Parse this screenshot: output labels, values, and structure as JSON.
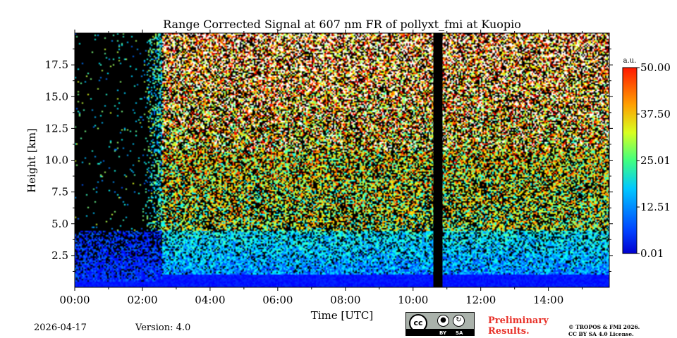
{
  "chart_data": {
    "type": "heatmap",
    "title": "Range Corrected Signal at 607 nm FR of pollyxt_fmi at Kuopio",
    "xlabel": "Time [UTC]",
    "ylabel": "Height [km]",
    "x_range_hours": [
      0,
      15.75
    ],
    "xlim_hours": [
      0,
      15.8
    ],
    "ylim_km": [
      0,
      20
    ],
    "x_ticks": [
      "00:00",
      "02:00",
      "04:00",
      "06:00",
      "08:00",
      "10:00",
      "12:00",
      "14:00"
    ],
    "x_tick_hours": [
      0,
      2,
      4,
      6,
      8,
      10,
      12,
      14
    ],
    "y_ticks": [
      "2.5",
      "5.0",
      "7.5",
      "10.0",
      "12.5",
      "15.0",
      "17.5"
    ],
    "y_tick_values": [
      2.5,
      5.0,
      7.5,
      10.0,
      12.5,
      15.0,
      17.5
    ],
    "colorbar": {
      "label": "a.u.",
      "min": 0.01,
      "max": 50.0,
      "ticks": [
        "0.01",
        "12.51",
        "25.01",
        "37.50",
        "50.00"
      ],
      "tick_values": [
        0.01,
        12.51,
        25.01,
        37.5,
        50.0
      ],
      "colormap": "jet"
    },
    "data_gap_hours": [
      10.6,
      10.87
    ],
    "low_signal_period_hours": [
      0,
      2.6
    ],
    "boundary_layer_top_km": 4.5
  },
  "footer": {
    "date": "2026-04-17",
    "version": "Version: 4.0",
    "preliminary_line1": "Preliminary",
    "preliminary_line2": "Results.",
    "copyright_line1": "© TROPOS & FMI 2026.",
    "copyright_line2": "CC BY SA 4.0 License.",
    "license_by": "BY",
    "license_sa": "SA"
  }
}
